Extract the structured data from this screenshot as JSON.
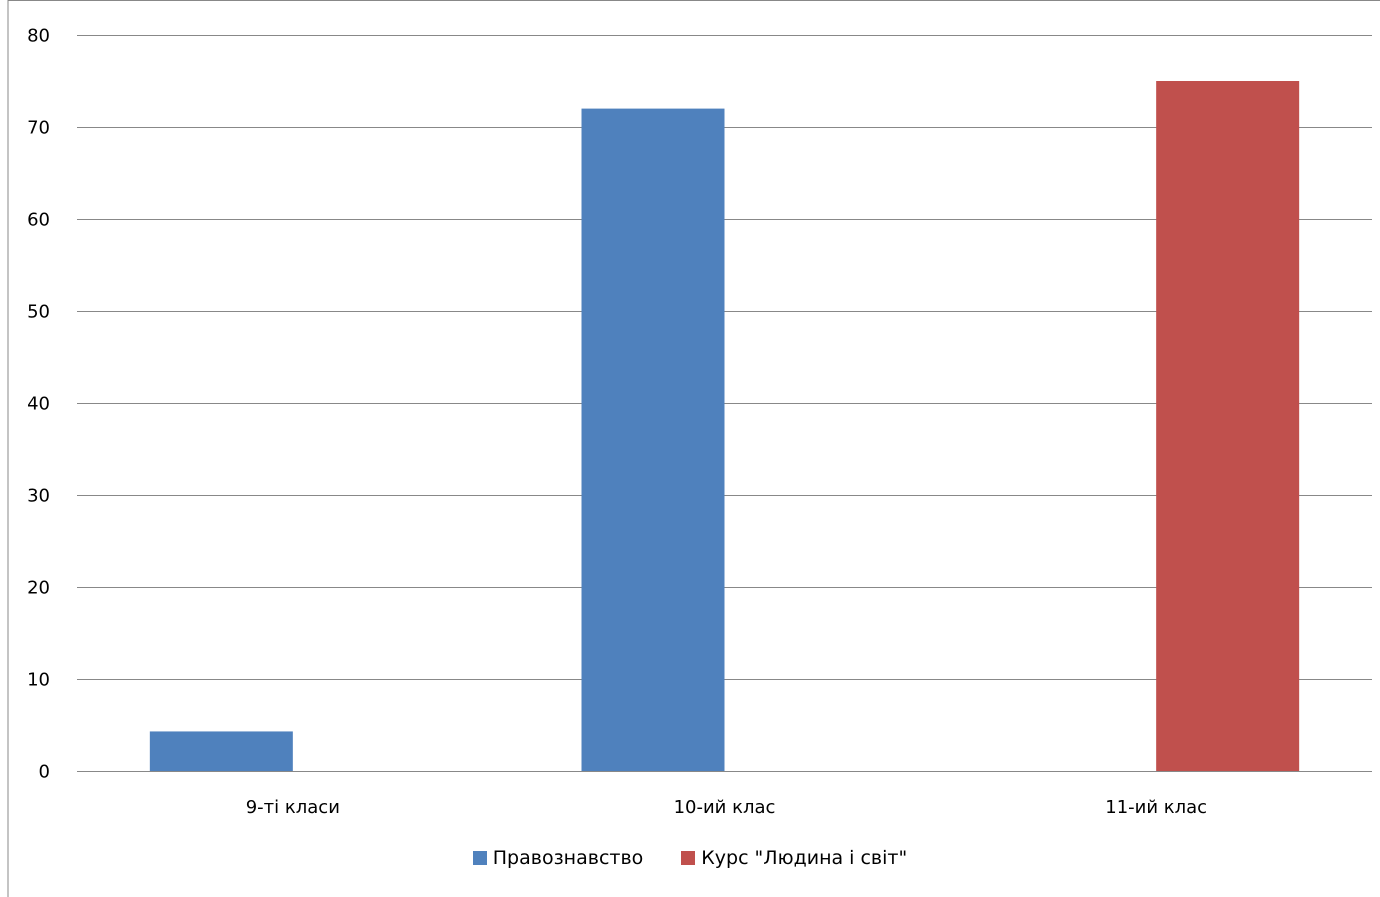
{
  "chart_data": {
    "type": "bar",
    "categories": [
      "9-ті класи",
      "10-ий клас",
      "11-ий клас"
    ],
    "series": [
      {
        "name": "Правознавство",
        "color": "#4f81bd",
        "values": [
          4.3,
          72,
          null
        ]
      },
      {
        "name": "Курс \"Людина і світ\"",
        "color": "#c0504d",
        "values": [
          null,
          null,
          75
        ]
      }
    ],
    "yticks": [
      "0",
      "10",
      "20",
      "30",
      "40",
      "50",
      "60",
      "70",
      "80"
    ],
    "ylim": [
      0,
      80
    ],
    "grid": true,
    "legend_position": "bottom",
    "title": "",
    "xlabel": "",
    "ylabel": ""
  }
}
